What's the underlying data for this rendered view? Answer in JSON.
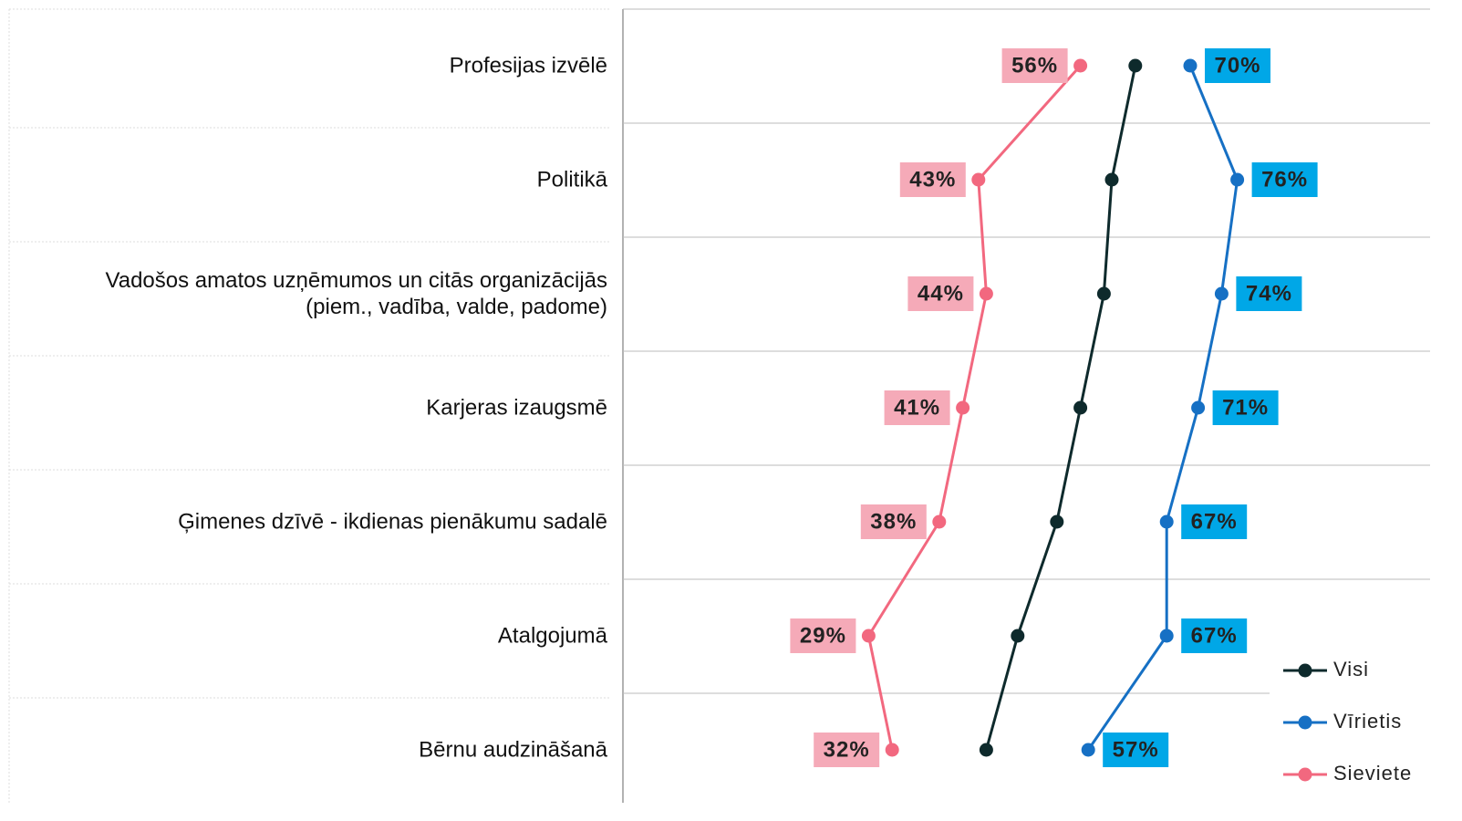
{
  "chart_data": {
    "type": "line",
    "categories": [
      "Profesijas izvēlē",
      "Politikā",
      "Vadošos amatos uzņēmumos un citās organizācijās\n(piem., vadība, valde, padome)",
      "Karjeras izaugsmē",
      "Ģimenes dzīvē - ikdienas pienākumu sadalē",
      "Atalgojumā",
      "Bērnu audzināšanā"
    ],
    "xlim": [
      0,
      100
    ],
    "legend": "bottom-right",
    "series": [
      {
        "name": "Visi",
        "color": "#0e2a2c",
        "values": [
          63,
          60,
          59,
          56,
          53,
          48,
          44
        ]
      },
      {
        "name": "Vīrietis",
        "color": "#1670c4",
        "values": [
          70,
          76,
          74,
          71,
          67,
          67,
          57
        ],
        "value_labels": [
          "70%",
          "76%",
          "74%",
          "71%",
          "67%",
          "67%",
          "57%"
        ],
        "label_color": "#00a7e7"
      },
      {
        "name": "Sieviete",
        "color": "#f2687f",
        "values": [
          56,
          43,
          44,
          41,
          38,
          29,
          32
        ],
        "value_labels": [
          "56%",
          "43%",
          "44%",
          "41%",
          "38%",
          "29%",
          "32%"
        ],
        "label_color": "#f5aab8"
      }
    ]
  }
}
